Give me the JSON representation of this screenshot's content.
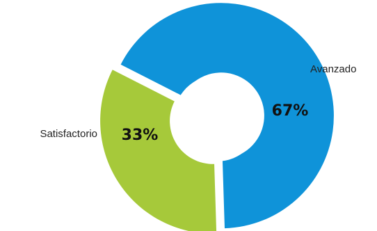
{
  "chart_data": {
    "type": "pie",
    "donut": true,
    "categories": [
      "Avanzado",
      "Satisfactorio"
    ],
    "values": [
      67,
      33
    ],
    "value_labels": [
      "67%",
      "33%"
    ],
    "colors": [
      "#0f93d9",
      "#a6c93a"
    ],
    "title": "",
    "legend": "none"
  }
}
